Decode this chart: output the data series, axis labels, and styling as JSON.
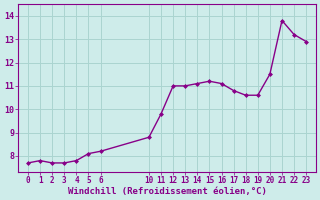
{
  "x": [
    0,
    1,
    2,
    3,
    4,
    5,
    6,
    10,
    11,
    12,
    13,
    14,
    15,
    16,
    17,
    18,
    19,
    20,
    21,
    22,
    23
  ],
  "y": [
    7.7,
    7.8,
    7.7,
    7.7,
    7.8,
    8.1,
    8.2,
    8.8,
    9.8,
    11.0,
    11.0,
    11.1,
    11.2,
    11.1,
    10.8,
    10.6,
    10.6,
    11.5,
    13.8,
    13.2,
    12.9
  ],
  "line_color": "#880088",
  "marker": "D",
  "marker_size": 2.0,
  "bg_color": "#ceecea",
  "grid_color": "#aad4d0",
  "xlabel": "Windchill (Refroidissement éolien,°C)",
  "xlabel_color": "#880088",
  "ylabel_ticks": [
    8,
    9,
    10,
    11,
    12,
    13,
    14
  ],
  "xlim": [
    -0.8,
    23.8
  ],
  "ylim": [
    7.3,
    14.5
  ],
  "xtick_labels_left": [
    "0",
    "1",
    "2",
    "3",
    "4",
    "5",
    "6"
  ],
  "xtick_pos_left": [
    0,
    1,
    2,
    3,
    4,
    5,
    6
  ],
  "xtick_labels_right": [
    "10",
    "11",
    "12",
    "13",
    "14",
    "15",
    "16",
    "17",
    "18",
    "19",
    "20",
    "21",
    "22",
    "23"
  ],
  "xtick_pos_right": [
    10,
    11,
    12,
    13,
    14,
    15,
    16,
    17,
    18,
    19,
    20,
    21,
    22,
    23
  ],
  "tick_color": "#880088",
  "line_width": 1.0,
  "tick_fontsize": 5.5,
  "xlabel_fontsize": 6.5,
  "ylabel_fontsize": 6.0
}
